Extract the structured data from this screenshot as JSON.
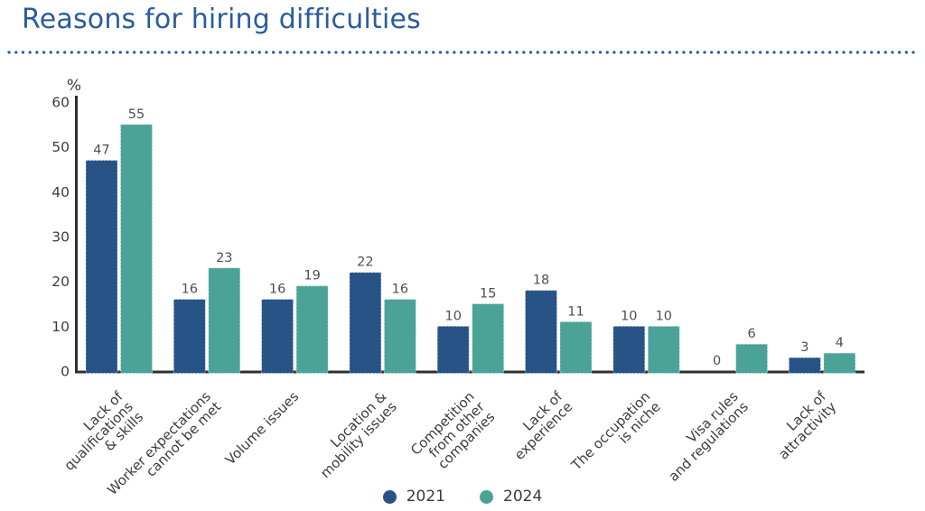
{
  "title": "Reasons for hiring difficulties",
  "unit_label": "%",
  "chart_data": {
    "type": "bar",
    "title": "Reasons for hiring difficulties",
    "xlabel": "",
    "ylabel": "%",
    "ylim": [
      0,
      60
    ],
    "yticks": [
      0,
      10,
      20,
      30,
      40,
      50,
      60
    ],
    "grid": false,
    "legend_position": "bottom-center",
    "categories": [
      "Lack of\nqualifications\n& skills",
      "Worker expectations\ncannot be met",
      "Volume issues",
      "Location &\nmobility issues",
      "Competition\nfrom other\ncompanies",
      "Lack of\nexperience",
      "The occupation\nis niche",
      "Visa rules\nand regulations",
      "Lack of\nattractivity"
    ],
    "series": [
      {
        "name": "2021",
        "color": "#275386",
        "values": [
          47,
          16,
          16,
          22,
          10,
          18,
          10,
          0,
          3
        ]
      },
      {
        "name": "2024",
        "color": "#4AA396",
        "values": [
          55,
          23,
          19,
          16,
          15,
          11,
          10,
          6,
          4
        ]
      }
    ]
  },
  "colors": {
    "title_accent": "#2B5C9B",
    "axis": "#2F2F2F",
    "tick_label": "#3D3D3D",
    "value_label": "#4F4F4F",
    "category_label": "#3C3C3C"
  }
}
